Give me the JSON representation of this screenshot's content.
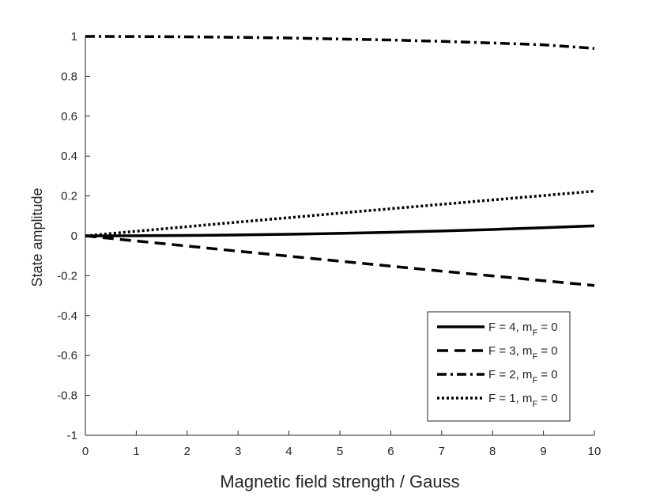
{
  "chart_data": {
    "type": "line",
    "xlabel": "Magnetic field strength / Gauss",
    "ylabel": "State amplitude",
    "xlim": [
      0,
      10
    ],
    "ylim": [
      -1,
      1
    ],
    "xticks": [
      0,
      1,
      2,
      3,
      4,
      5,
      6,
      7,
      8,
      9,
      10
    ],
    "yticks": [
      1,
      0.8,
      0.6,
      0.4,
      0.2,
      0,
      -0.2,
      -0.4,
      -0.6,
      -0.8,
      -1
    ],
    "ytick_labels": [
      "1",
      "0.8",
      "0.6",
      "0.4",
      "0.2",
      "0",
      "-0.2",
      "-0.4",
      "-0.6",
      "-0.8",
      "-1"
    ],
    "grid": false,
    "legend_position": "bottom-right",
    "x": [
      0,
      1,
      2,
      3,
      4,
      5,
      6,
      7,
      8,
      9,
      10
    ],
    "series": [
      {
        "name": "F = 4, m",
        "name_sub": "F",
        "name_suffix": " = 0",
        "style": "solid",
        "color": "#000000",
        "values": [
          0,
          0.0005,
          0.002,
          0.0045,
          0.008,
          0.0125,
          0.018,
          0.0245,
          0.032,
          0.0405,
          0.05
        ]
      },
      {
        "name": "F = 3, m",
        "name_sub": "F",
        "name_suffix": " = 0",
        "style": "dashed",
        "color": "#000000",
        "values": [
          0,
          -0.026,
          -0.051,
          -0.077,
          -0.102,
          -0.127,
          -0.152,
          -0.177,
          -0.201,
          -0.225,
          -0.249
        ]
      },
      {
        "name": "F = 2, m",
        "name_sub": "F",
        "name_suffix": " = 0",
        "style": "dashdot",
        "color": "#000000",
        "values": [
          1,
          0.9995,
          0.998,
          0.9955,
          0.992,
          0.987,
          0.982,
          0.975,
          0.967,
          0.958,
          0.94
        ]
      },
      {
        "name": "F = 1, m",
        "name_sub": "F",
        "name_suffix": " = 0",
        "style": "dotted",
        "color": "#000000",
        "values": [
          0,
          0.023,
          0.046,
          0.069,
          0.091,
          0.114,
          0.136,
          0.158,
          0.18,
          0.202,
          0.224
        ]
      }
    ]
  }
}
